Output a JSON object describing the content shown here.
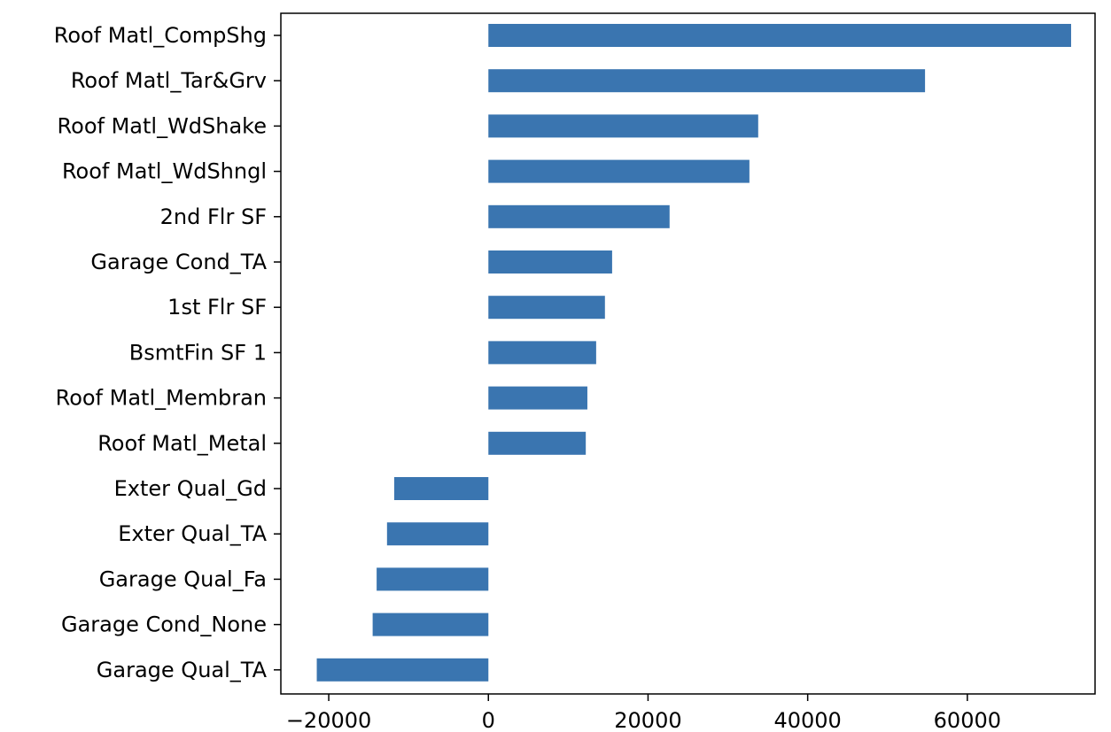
{
  "chart_data": {
    "type": "bar",
    "orientation": "horizontal",
    "categories": [
      "Roof Matl_CompShg",
      "Roof Matl_Tar&Grv",
      "Roof Matl_WdShake",
      "Roof Matl_WdShngl",
      "2nd Flr SF",
      "Garage Cond_TA",
      "1st Flr SF",
      "BsmtFin SF 1",
      "Roof Matl_Membran",
      "Roof Matl_Metal",
      "Exter Qual_Gd",
      "Exter Qual_TA",
      "Garage Qual_Fa",
      "Garage Cond_None",
      "Garage Qual_TA"
    ],
    "values": [
      73000,
      54700,
      33800,
      32700,
      22700,
      15500,
      14600,
      13500,
      12400,
      12200,
      -11800,
      -12700,
      -14000,
      -14500,
      -21500
    ],
    "xlim": [
      -26000,
      76000
    ],
    "xticks": [
      -20000,
      0,
      20000,
      40000,
      60000
    ],
    "xtick_labels": [
      "−20000",
      "0",
      "20000",
      "40000",
      "60000"
    ],
    "title": "",
    "xlabel": "",
    "ylabel": "",
    "grid": false,
    "legend": "none",
    "bar_color": "#3a75b0"
  }
}
